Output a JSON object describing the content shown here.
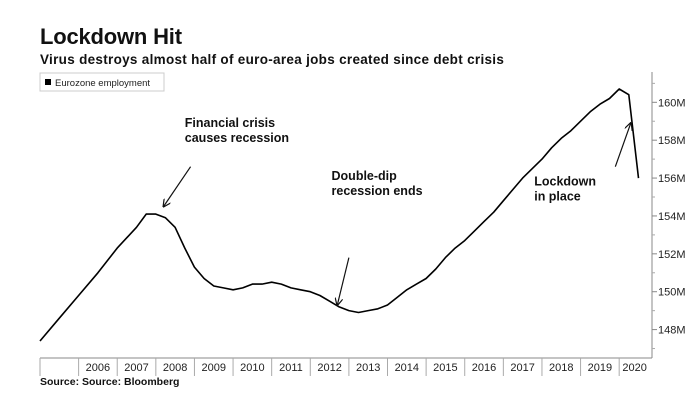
{
  "header": {
    "title": "Lockdown Hit",
    "subtitle": "Virus destroys almost half of euro-area jobs created since debt crisis"
  },
  "footer": {
    "source": "Source: Source: Bloomberg"
  },
  "chart_data": {
    "type": "line",
    "title": "Lockdown Hit",
    "subtitle": "Virus destroys almost half of euro-area jobs created since debt crisis",
    "xlabel": "",
    "ylabel": "",
    "legend": {
      "placement": "top-left",
      "entries": [
        "Eurozone employment"
      ]
    },
    "series": [
      {
        "name": "Eurozone employment",
        "color": "#000000",
        "points": [
          [
            2005.0,
            147.4
          ],
          [
            2005.5,
            148.6
          ],
          [
            2006.0,
            149.8
          ],
          [
            2006.5,
            151.0
          ],
          [
            2007.0,
            152.3
          ],
          [
            2007.5,
            153.4
          ],
          [
            2007.75,
            154.1
          ],
          [
            2008.0,
            154.1
          ],
          [
            2008.25,
            153.9
          ],
          [
            2008.5,
            153.4
          ],
          [
            2008.75,
            152.3
          ],
          [
            2009.0,
            151.3
          ],
          [
            2009.25,
            150.7
          ],
          [
            2009.5,
            150.3
          ],
          [
            2009.75,
            150.2
          ],
          [
            2010.0,
            150.1
          ],
          [
            2010.25,
            150.2
          ],
          [
            2010.5,
            150.4
          ],
          [
            2010.75,
            150.4
          ],
          [
            2011.0,
            150.5
          ],
          [
            2011.25,
            150.4
          ],
          [
            2011.5,
            150.2
          ],
          [
            2011.75,
            150.1
          ],
          [
            2012.0,
            150.0
          ],
          [
            2012.25,
            149.8
          ],
          [
            2012.5,
            149.5
          ],
          [
            2012.75,
            149.2
          ],
          [
            2013.0,
            149.0
          ],
          [
            2013.25,
            148.9
          ],
          [
            2013.5,
            149.0
          ],
          [
            2013.75,
            149.1
          ],
          [
            2014.0,
            149.3
          ],
          [
            2014.25,
            149.7
          ],
          [
            2014.5,
            150.1
          ],
          [
            2014.75,
            150.4
          ],
          [
            2015.0,
            150.7
          ],
          [
            2015.25,
            151.2
          ],
          [
            2015.5,
            151.8
          ],
          [
            2015.75,
            152.3
          ],
          [
            2016.0,
            152.7
          ],
          [
            2016.25,
            153.2
          ],
          [
            2016.5,
            153.7
          ],
          [
            2016.75,
            154.2
          ],
          [
            2017.0,
            154.8
          ],
          [
            2017.25,
            155.4
          ],
          [
            2017.5,
            156.0
          ],
          [
            2017.75,
            156.5
          ],
          [
            2018.0,
            157.0
          ],
          [
            2018.25,
            157.6
          ],
          [
            2018.5,
            158.1
          ],
          [
            2018.75,
            158.5
          ],
          [
            2019.0,
            159.0
          ],
          [
            2019.25,
            159.5
          ],
          [
            2019.5,
            159.9
          ],
          [
            2019.75,
            160.2
          ],
          [
            2020.0,
            160.7
          ],
          [
            2020.25,
            160.4
          ],
          [
            2020.5,
            156.0
          ]
        ]
      }
    ],
    "xlim": [
      2005.0,
      2020.85
    ],
    "ylim": [
      146.5,
      161.6
    ],
    "x_ticks": [
      {
        "label": "2006",
        "value": 2006.5
      },
      {
        "label": "2007",
        "value": 2007.5
      },
      {
        "label": "2008",
        "value": 2008.5
      },
      {
        "label": "2009",
        "value": 2009.5
      },
      {
        "label": "2010",
        "value": 2010.5
      },
      {
        "label": "2011",
        "value": 2011.5
      },
      {
        "label": "2012",
        "value": 2012.5
      },
      {
        "label": "2013",
        "value": 2013.5
      },
      {
        "label": "2014",
        "value": 2014.5
      },
      {
        "label": "2015",
        "value": 2015.5
      },
      {
        "label": "2016",
        "value": 2016.5
      },
      {
        "label": "2017",
        "value": 2017.5
      },
      {
        "label": "2018",
        "value": 2018.5
      },
      {
        "label": "2019",
        "value": 2019.5
      },
      {
        "label": "2020",
        "value": 2020.4
      }
    ],
    "y_ticks": [
      {
        "label": "148M",
        "value": 148
      },
      {
        "label": "150M",
        "value": 150
      },
      {
        "label": "152M",
        "value": 152
      },
      {
        "label": "154M",
        "value": 154
      },
      {
        "label": "156M",
        "value": 156
      },
      {
        "label": "158M",
        "value": 158
      },
      {
        "label": "160M",
        "value": 160
      }
    ],
    "annotations": [
      {
        "lines": [
          "Financial crisis",
          "causes recession"
        ],
        "text_x": 2008.75,
        "text_y": 158.7,
        "arrow_from": [
          2008.9,
          156.6
        ],
        "arrow_to": [
          2008.2,
          154.5
        ]
      },
      {
        "lines": [
          "Double-dip",
          "recession ends"
        ],
        "text_x": 2012.55,
        "text_y": 155.9,
        "arrow_from": [
          2013.0,
          151.8
        ],
        "arrow_to": [
          2012.7,
          149.3
        ]
      },
      {
        "lines": [
          "Lockdown",
          "in place"
        ],
        "text_x": 2017.8,
        "text_y": 155.6,
        "arrow_from": [
          2019.9,
          156.6
        ],
        "arrow_to": [
          2020.3,
          158.9
        ]
      }
    ],
    "grid": false
  }
}
